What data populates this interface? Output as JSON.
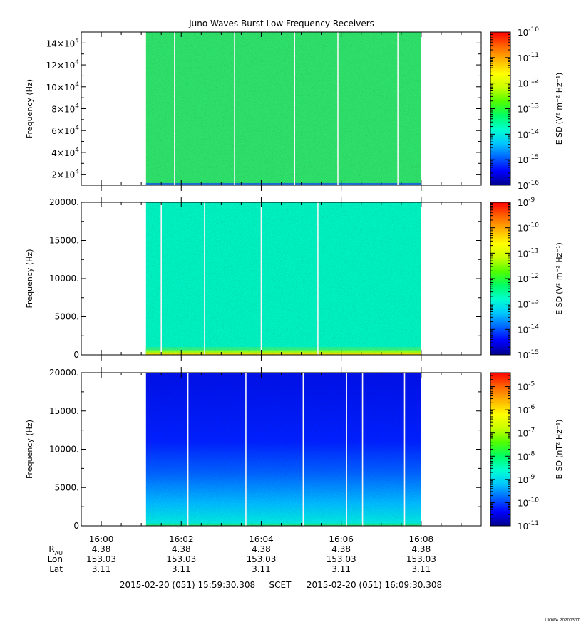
{
  "figure": {
    "title": "Juno Waves Burst Low Frequency Receivers",
    "footer": "UIOWA 20200307",
    "colors": {
      "background": "#ffffff",
      "axis": "#000000",
      "gap_line": "#f4f4f4"
    },
    "colormap": [
      "#00008c",
      "#0000ff",
      "#0064ff",
      "#00c8ff",
      "#00ffd0",
      "#00ff64",
      "#50ff00",
      "#c8ff00",
      "#ffff00",
      "#ffb400",
      "#ff6400",
      "#ff0000"
    ]
  },
  "chart_data": [
    {
      "type": "heatmap",
      "ylabel": "Frequency (Hz)",
      "ylim": [
        10000,
        150000
      ],
      "yticks": [
        20000,
        40000,
        60000,
        80000,
        100000,
        120000,
        140000
      ],
      "ytick_labels": [
        {
          "mant": "2×10",
          "exp": "4"
        },
        {
          "mant": "4×10",
          "exp": "4"
        },
        {
          "mant": "6×10",
          "exp": "4"
        },
        {
          "mant": "8×10",
          "exp": "4"
        },
        {
          "mant": "10×10",
          "exp": "4"
        },
        {
          "mant": "12×10",
          "exp": "4"
        },
        {
          "mant": "14×10",
          "exp": "4"
        }
      ],
      "data_time_range": [
        "16:01:07",
        "16:08:00"
      ],
      "base_color": "#2ee06a",
      "low_band_color": "#1a6fd0",
      "low_band_top_hz": 12000,
      "gap_times": [
        "16:01:50",
        "16:03:20",
        "16:04:50",
        "16:05:55",
        "16:07:25"
      ],
      "colorbar": {
        "label": "E SD",
        "label_unit": "(V² m⁻² Hz⁻¹)",
        "min_exp": -16,
        "max_exp": -10,
        "tick_exps": [
          -16,
          -15,
          -14,
          -13,
          -12,
          -11,
          -10
        ]
      }
    },
    {
      "type": "heatmap",
      "ylabel": "Frequency (Hz)",
      "ylim": [
        0,
        20000
      ],
      "yticks": [
        0,
        5000,
        10000,
        15000,
        20000
      ],
      "ytick_labels": [
        "0",
        "5000.",
        "10000.",
        "15000.",
        "20000."
      ],
      "data_time_range": [
        "16:01:07",
        "16:08:00"
      ],
      "base_color": "#00f0c0",
      "low_band": [
        {
          "top_hz": 300,
          "color": "#e8e000"
        },
        {
          "top_hz": 600,
          "color": "#8cff20"
        },
        {
          "top_hz": 1000,
          "color": "#30f080"
        }
      ],
      "gap_times": [
        "16:01:30",
        "16:02:35",
        "16:04:00",
        "16:05:25"
      ],
      "colorbar": {
        "label": "E SD",
        "label_unit": "(V² m⁻² Hz⁻¹)",
        "min_exp": -15,
        "max_exp": -9,
        "tick_exps": [
          -15,
          -14,
          -13,
          -12,
          -11,
          -10,
          -9
        ]
      }
    },
    {
      "type": "heatmap",
      "ylabel": "Frequency (Hz)",
      "ylim": [
        0,
        20000
      ],
      "yticks": [
        0,
        5000,
        10000,
        15000,
        20000
      ],
      "ytick_labels": [
        "0",
        "5000.",
        "10000.",
        "15000.",
        "20000."
      ],
      "data_time_range": [
        "16:01:07",
        "16:08:00"
      ],
      "vertical_gradient": [
        {
          "hz": 0,
          "color": "#30e060"
        },
        {
          "hz": 400,
          "color": "#00e8e0"
        },
        {
          "hz": 3000,
          "color": "#00b8ff"
        },
        {
          "hz": 7000,
          "color": "#0060ff"
        },
        {
          "hz": 11000,
          "color": "#0020ff"
        },
        {
          "hz": 20000,
          "color": "#0010e8"
        }
      ],
      "gap_times": [
        "16:02:10",
        "16:03:37",
        "16:05:03",
        "16:06:08",
        "16:06:32",
        "16:07:35"
      ],
      "colorbar": {
        "label": "B SD",
        "label_unit": "(nT² Hz⁻¹)",
        "min_exp": -11,
        "max_exp": -4.4,
        "tick_exps": [
          -11,
          -10,
          -9,
          -8,
          -7,
          -6,
          -5
        ]
      }
    }
  ],
  "time_axis": {
    "range": [
      "15:59:30",
      "16:09:30"
    ],
    "major_ticks": [
      "16:00",
      "16:02",
      "16:04",
      "16:06",
      "16:08"
    ],
    "minor_step_seconds": 30
  },
  "ephemeris": {
    "row_labels": [
      {
        "main": "R",
        "sub": "AU"
      },
      {
        "main": "Lon",
        "sub": ""
      },
      {
        "main": "Lat",
        "sub": ""
      }
    ],
    "columns": [
      {
        "time": "16:00",
        "r_au": "4.38",
        "lon": "153.03",
        "lat": "3.11"
      },
      {
        "time": "16:02",
        "r_au": "4.38",
        "lon": "153.03",
        "lat": "3.11"
      },
      {
        "time": "16:04",
        "r_au": "4.38",
        "lon": "153.03",
        "lat": "3.11"
      },
      {
        "time": "16:06",
        "r_au": "4.38",
        "lon": "153.03",
        "lat": "3.11"
      },
      {
        "time": "16:08",
        "r_au": "4.38",
        "lon": "153.03",
        "lat": "3.11"
      }
    ]
  },
  "time_range_text": {
    "start": "2015-02-20 (051) 15:59:30.308",
    "frame": "SCET",
    "end": "2015-02-20 (051) 16:09:30.308"
  }
}
